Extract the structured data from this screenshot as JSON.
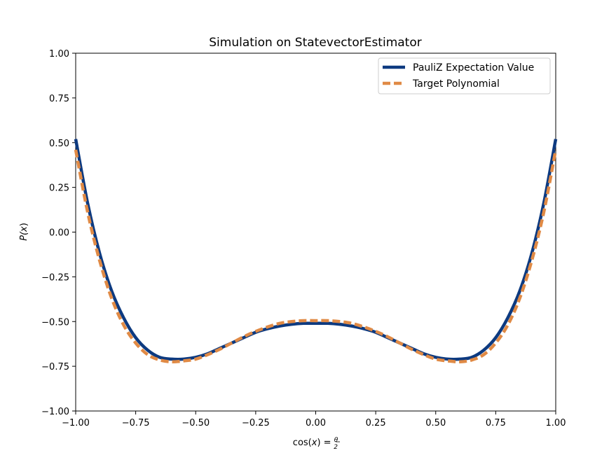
{
  "chart_data": {
    "type": "line",
    "title": "Simulation on StatevectorEstimator",
    "xlabel": "cos(x) = θ/2",
    "xlabel_parts": {
      "pre": "cos(",
      "var": "x",
      "mid": ") = ",
      "num": "θ",
      "den": "2"
    },
    "ylabel": "P(x)",
    "ylabel_parts": {
      "pre": "P(",
      "var": "x",
      "post": ")"
    },
    "xlim": [
      -1.0,
      1.0
    ],
    "ylim": [
      -1.0,
      1.0
    ],
    "xticks": [
      -1.0,
      -0.75,
      -0.5,
      -0.25,
      0.0,
      0.25,
      0.5,
      0.75,
      1.0
    ],
    "xtick_labels": [
      "−1.00",
      "−0.75",
      "−0.50",
      "−0.25",
      "0.00",
      "0.25",
      "0.50",
      "0.75",
      "1.00"
    ],
    "yticks": [
      -1.0,
      -0.75,
      -0.5,
      -0.25,
      0.0,
      0.25,
      0.5,
      0.75,
      1.0
    ],
    "ytick_labels": [
      "−1.00",
      "−0.75",
      "−0.50",
      "−0.25",
      "0.00",
      "0.25",
      "0.50",
      "0.75",
      "1.00"
    ],
    "grid": false,
    "legend_position": "top-right",
    "series": [
      {
        "name": "PauliZ Expectation Value",
        "color": "#0d3a80",
        "style": "solid",
        "x": [
          -1.0,
          -0.95,
          -0.9,
          -0.85,
          -0.8,
          -0.75,
          -0.7,
          -0.65,
          -0.6,
          -0.55,
          -0.5,
          -0.45,
          -0.4,
          -0.35,
          -0.3,
          -0.25,
          -0.2,
          -0.15,
          -0.1,
          -0.05,
          0.0,
          0.05,
          0.1,
          0.15,
          0.2,
          0.25,
          0.3,
          0.35,
          0.4,
          0.45,
          0.5,
          0.55,
          0.6,
          0.65,
          0.7,
          0.75,
          0.8,
          0.85,
          0.9,
          0.95,
          1.0
        ],
        "y": [
          0.52,
          0.16,
          -0.12,
          -0.33,
          -0.48,
          -0.59,
          -0.66,
          -0.7,
          -0.71,
          -0.71,
          -0.7,
          -0.68,
          -0.65,
          -0.62,
          -0.59,
          -0.56,
          -0.54,
          -0.525,
          -0.515,
          -0.51,
          -0.51,
          -0.51,
          -0.515,
          -0.525,
          -0.54,
          -0.56,
          -0.59,
          -0.62,
          -0.65,
          -0.68,
          -0.7,
          -0.71,
          -0.71,
          -0.7,
          -0.66,
          -0.59,
          -0.48,
          -0.33,
          -0.12,
          0.16,
          0.52
        ]
      },
      {
        "name": "Target Polynomial",
        "color": "#e08a45",
        "style": "dashed",
        "x": [
          -1.0,
          -0.95,
          -0.9,
          -0.85,
          -0.8,
          -0.75,
          -0.7,
          -0.65,
          -0.6,
          -0.55,
          -0.5,
          -0.45,
          -0.4,
          -0.35,
          -0.3,
          -0.25,
          -0.2,
          -0.15,
          -0.1,
          -0.05,
          0.0,
          0.05,
          0.1,
          0.15,
          0.2,
          0.25,
          0.3,
          0.35,
          0.4,
          0.45,
          0.5,
          0.55,
          0.6,
          0.65,
          0.7,
          0.75,
          0.8,
          0.85,
          0.9,
          0.95,
          1.0
        ],
        "y": [
          0.46,
          0.11,
          -0.16,
          -0.37,
          -0.52,
          -0.62,
          -0.685,
          -0.715,
          -0.725,
          -0.72,
          -0.71,
          -0.685,
          -0.655,
          -0.62,
          -0.585,
          -0.555,
          -0.53,
          -0.51,
          -0.5,
          -0.495,
          -0.495,
          -0.495,
          -0.5,
          -0.51,
          -0.53,
          -0.555,
          -0.585,
          -0.62,
          -0.655,
          -0.685,
          -0.71,
          -0.72,
          -0.725,
          -0.715,
          -0.685,
          -0.62,
          -0.52,
          -0.37,
          -0.16,
          0.11,
          0.46
        ]
      }
    ]
  }
}
